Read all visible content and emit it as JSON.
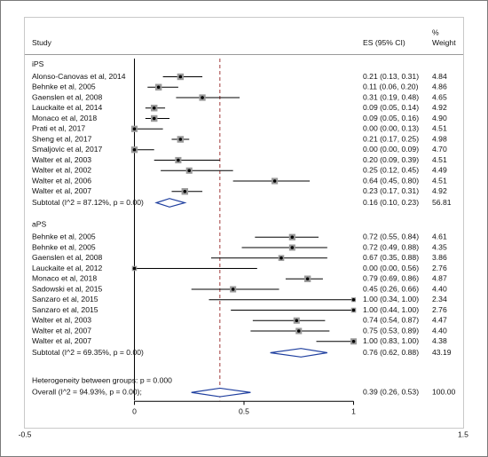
{
  "chart_data": {
    "type": "forest",
    "headers": {
      "study": "Study",
      "es": "ES (95% CI)",
      "weight_line1": "%",
      "weight_line2": "Weight"
    },
    "xlim": [
      -0.5,
      1.5
    ],
    "null_value": 0,
    "overall_line_value": 0.39,
    "x_ticks": [
      {
        "value": -0.5,
        "label": "-0.5"
      },
      {
        "value": 0,
        "label": "0"
      },
      {
        "value": 0.5,
        "label": "0.5"
      },
      {
        "value": 1,
        "label": "1"
      },
      {
        "value": 1.5,
        "label": "1.5"
      }
    ],
    "groups": [
      {
        "name": "iPS",
        "studies": [
          {
            "label": "Alonso-Canovas et al, 2014",
            "es": 0.21,
            "lo": 0.13,
            "hi": 0.31,
            "es_text": "0.21 (0.13, 0.31)",
            "weight": 4.84,
            "weight_text": "4.84"
          },
          {
            "label": "Behnke et al, 2005",
            "es": 0.11,
            "lo": 0.06,
            "hi": 0.2,
            "es_text": "0.11 (0.06, 0.20)",
            "weight": 4.86,
            "weight_text": "4.86"
          },
          {
            "label": "Gaenslen et al, 2008",
            "es": 0.31,
            "lo": 0.19,
            "hi": 0.48,
            "es_text": "0.31 (0.19, 0.48)",
            "weight": 4.65,
            "weight_text": "4.65"
          },
          {
            "label": "Lauckaite et al, 2014",
            "es": 0.09,
            "lo": 0.05,
            "hi": 0.14,
            "es_text": "0.09 (0.05, 0.14)",
            "weight": 4.92,
            "weight_text": "4.92"
          },
          {
            "label": "Monaco et al, 2018",
            "es": 0.09,
            "lo": 0.05,
            "hi": 0.16,
            "es_text": "0.09 (0.05, 0.16)",
            "weight": 4.9,
            "weight_text": "4.90"
          },
          {
            "label": "Prati et al, 2017",
            "es": 0.0,
            "lo": 0.0,
            "hi": 0.13,
            "es_text": "0.00 (0.00, 0.13)",
            "weight": 4.51,
            "weight_text": "4.51"
          },
          {
            "label": "Sheng et al, 2017",
            "es": 0.21,
            "lo": 0.17,
            "hi": 0.25,
            "es_text": "0.21 (0.17, 0.25)",
            "weight": 4.98,
            "weight_text": "4.98"
          },
          {
            "label": "Smaljovic et al, 2017",
            "es": 0.0,
            "lo": 0.0,
            "hi": 0.09,
            "es_text": "0.00 (0.00, 0.09)",
            "weight": 4.7,
            "weight_text": "4.70"
          },
          {
            "label": "Walter et al, 2003",
            "es": 0.2,
            "lo": 0.09,
            "hi": 0.39,
            "es_text": "0.20 (0.09, 0.39)",
            "weight": 4.51,
            "weight_text": "4.51"
          },
          {
            "label": "Walter et al, 2002",
            "es": 0.25,
            "lo": 0.12,
            "hi": 0.45,
            "es_text": "0.25 (0.12, 0.45)",
            "weight": 4.49,
            "weight_text": "4.49"
          },
          {
            "label": "Walter et al, 2006",
            "es": 0.64,
            "lo": 0.45,
            "hi": 0.8,
            "es_text": "0.64 (0.45, 0.80)",
            "weight": 4.51,
            "weight_text": "4.51"
          },
          {
            "label": "Walter et al, 2007",
            "es": 0.23,
            "lo": 0.17,
            "hi": 0.31,
            "es_text": "0.23 (0.17, 0.31)",
            "weight": 4.92,
            "weight_text": "4.92"
          }
        ],
        "subtotal": {
          "label": "Subtotal  (I^2 = 87.12%, p = 0.00)",
          "es": 0.16,
          "lo": 0.1,
          "hi": 0.23,
          "es_text": "0.16 (0.10, 0.23)",
          "weight_text": "56.81"
        }
      },
      {
        "name": "aPS",
        "studies": [
          {
            "label": "Behnke et al, 2005",
            "es": 0.72,
            "lo": 0.55,
            "hi": 0.84,
            "es_text": "0.72 (0.55, 0.84)",
            "weight": 4.61,
            "weight_text": "4.61"
          },
          {
            "label": "Behnke et al, 2005",
            "es": 0.72,
            "lo": 0.49,
            "hi": 0.88,
            "es_text": "0.72 (0.49, 0.88)",
            "weight": 4.35,
            "weight_text": "4.35"
          },
          {
            "label": "Gaenslen et al, 2008",
            "es": 0.67,
            "lo": 0.35,
            "hi": 0.88,
            "es_text": "0.67 (0.35, 0.88)",
            "weight": 3.86,
            "weight_text": "3.86"
          },
          {
            "label": "Lauckaite et al, 2012",
            "es": 0.0,
            "lo": 0.0,
            "hi": 0.56,
            "es_text": "0.00 (0.00, 0.56)",
            "weight": 2.76,
            "weight_text": "2.76"
          },
          {
            "label": "Monaco et al, 2018",
            "es": 0.79,
            "lo": 0.69,
            "hi": 0.86,
            "es_text": "0.79 (0.69, 0.86)",
            "weight": 4.87,
            "weight_text": "4.87"
          },
          {
            "label": "Sadowski et al, 2015",
            "es": 0.45,
            "lo": 0.26,
            "hi": 0.66,
            "es_text": "0.45 (0.26, 0.66)",
            "weight": 4.4,
            "weight_text": "4.40"
          },
          {
            "label": "Sanzaro et al, 2015",
            "es": 1.0,
            "lo": 0.34,
            "hi": 1.0,
            "es_text": "1.00 (0.34, 1.00)",
            "weight": 2.34,
            "weight_text": "2.34"
          },
          {
            "label": "Sanzaro et al, 2015",
            "es": 1.0,
            "lo": 0.44,
            "hi": 1.0,
            "es_text": "1.00 (0.44, 1.00)",
            "weight": 2.76,
            "weight_text": "2.76"
          },
          {
            "label": "Walter et al, 2003",
            "es": 0.74,
            "lo": 0.54,
            "hi": 0.87,
            "es_text": "0.74 (0.54, 0.87)",
            "weight": 4.47,
            "weight_text": "4.47"
          },
          {
            "label": "Walter et al, 2007",
            "es": 0.75,
            "lo": 0.53,
            "hi": 0.89,
            "es_text": "0.75 (0.53, 0.89)",
            "weight": 4.4,
            "weight_text": "4.40"
          },
          {
            "label": "Walter et al, 2007",
            "es": 1.0,
            "lo": 0.83,
            "hi": 1.0,
            "es_text": "1.00 (0.83, 1.00)",
            "weight": 4.38,
            "weight_text": "4.38"
          }
        ],
        "subtotal": {
          "label": "Subtotal  (I^2 = 69.35%, p = 0.00)",
          "es": 0.76,
          "lo": 0.62,
          "hi": 0.88,
          "es_text": "0.76 (0.62, 0.88)",
          "weight_text": "43.19"
        }
      }
    ],
    "heterogeneity": "Heterogeneity between groups: p = 0.000",
    "overall": {
      "label": "Overall  (I^2 = 94.93%, p = 0.00);",
      "es": 0.39,
      "lo": 0.26,
      "hi": 0.53,
      "es_text": "0.39 (0.26, 0.53)",
      "weight_text": "100.00"
    },
    "colors": {
      "diamond": "#1f3f9f",
      "reference_line": "#a23b3b",
      "weight_box": "#9a9a9a"
    }
  }
}
